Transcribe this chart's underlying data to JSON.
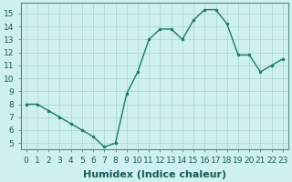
{
  "x": [
    0,
    1,
    2,
    3,
    4,
    5,
    6,
    7,
    8,
    9,
    10,
    11,
    12,
    13,
    14,
    15,
    16,
    17,
    18,
    19,
    20,
    21,
    22,
    23
  ],
  "y": [
    8.0,
    8.0,
    7.5,
    7.0,
    6.5,
    6.0,
    5.5,
    4.7,
    5.0,
    8.8,
    10.5,
    13.0,
    13.8,
    13.8,
    13.0,
    14.5,
    15.3,
    15.3,
    14.2,
    11.8,
    11.8,
    10.5,
    11.0,
    11.5
  ],
  "line_color": "#1a7a5e",
  "marker_color": "#1a7a5e",
  "bg_color": "#cff0f0",
  "grid_color": "#b0d8d8",
  "xlabel": "Humidex (Indice chaleur)",
  "tick_fontsize": 6.5,
  "xlabel_fontsize": 8,
  "xlim": [
    -0.5,
    23.5
  ],
  "ylim": [
    4.5,
    15.8
  ],
  "yticks": [
    5,
    6,
    7,
    8,
    9,
    10,
    11,
    12,
    13,
    14,
    15
  ],
  "xticks": [
    0,
    1,
    2,
    3,
    4,
    5,
    6,
    7,
    8,
    9,
    10,
    11,
    12,
    13,
    14,
    15,
    16,
    17,
    18,
    19,
    20,
    21,
    22,
    23
  ]
}
